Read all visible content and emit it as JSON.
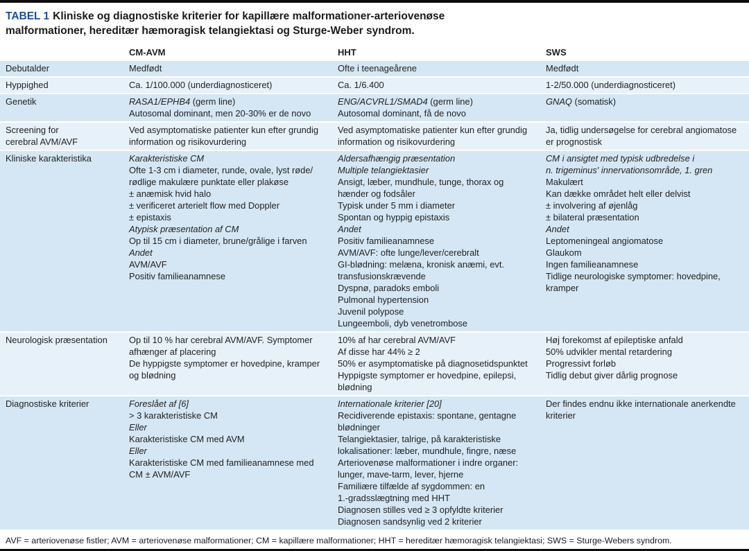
{
  "title": {
    "tag": "TABEL 1",
    "line1": "Kliniske og diagnostiske kriterier for kapillære malformationer-arteriovenøse",
    "line2": "malformationer, hereditær hæmoragisk telangiektasi og Sturge-Weber syndrom."
  },
  "colors": {
    "title_tag_blue": "#1e4f96",
    "row_dark_blue": "#d5e7f4",
    "row_light_blue": "#e7f1fa",
    "rule_black": "#0c0c0c"
  },
  "table": {
    "columns": [
      "CM-AVM",
      "HHT",
      "SWS"
    ],
    "column_keys": [
      "cm-avm",
      "hht",
      "sws"
    ],
    "rows": [
      {
        "label": [
          "Debutalder"
        ],
        "cells": [
          [
            [
              {
                "t": "Medfødt"
              }
            ]
          ],
          [
            [
              {
                "t": "Ofte i teenageårene"
              }
            ]
          ],
          [
            [
              {
                "t": "Medfødt"
              }
            ]
          ]
        ]
      },
      {
        "label": [
          "Hyppighed"
        ],
        "cells": [
          [
            [
              {
                "t": "Ca. 1/100.000 (underdiagnosticeret)"
              }
            ]
          ],
          [
            [
              {
                "t": "Ca. 1/6.400"
              }
            ]
          ],
          [
            [
              {
                "t": "1-2/50.000 (underdiagnosticeret)"
              }
            ]
          ]
        ]
      },
      {
        "label": [
          "Genetik"
        ],
        "cells": [
          [
            [
              {
                "t": "RASA1/EPHB4",
                "i": true
              },
              {
                "t": " (germ line)"
              }
            ],
            [
              {
                "t": "Autosomal dominant, men 20-30% er de novo"
              }
            ]
          ],
          [
            [
              {
                "t": "ENG/ACVRL1/SMAD4",
                "i": true
              },
              {
                "t": " (germ line)"
              }
            ],
            [
              {
                "t": "Autosomal dominant, få de novo"
              }
            ]
          ],
          [
            [
              {
                "t": "GNAQ",
                "i": true
              },
              {
                "t": " (somatisk)"
              }
            ]
          ]
        ]
      },
      {
        "label": [
          "Screening for",
          "cerebral AVM/AVF"
        ],
        "cells": [
          [
            [
              {
                "t": "Ved asymptomatiske patienter kun efter grundig"
              }
            ],
            [
              {
                "t": "information og risikovurdering"
              }
            ]
          ],
          [
            [
              {
                "t": "Ved asymptomatiske patienter kun efter grundig"
              }
            ],
            [
              {
                "t": "information og risikovurdering"
              }
            ]
          ],
          [
            [
              {
                "t": "Ja, tidlig undersøgelse for cerebral angiomatose"
              }
            ],
            [
              {
                "t": "er prognostisk"
              }
            ]
          ]
        ]
      },
      {
        "label": [
          "Kliniske karakteristika"
        ],
        "cells": [
          [
            [
              {
                "t": "Karakteristiske CM",
                "i": true
              }
            ],
            [
              {
                "t": "Ofte 1-3 cm i diameter, runde, ovale, lyst røde/"
              }
            ],
            [
              {
                "t": "rødlige makulære punktate eller plakøse"
              }
            ],
            [
              {
                "t": "± anæmisk hvid halo"
              }
            ],
            [
              {
                "t": "± verificeret arterielt flow med Doppler"
              }
            ],
            [
              {
                "t": "± epistaxis"
              }
            ],
            [
              {
                "t": "Atypisk præsentation af CM",
                "i": true
              }
            ],
            [
              {
                "t": "Op til 15 cm i diameter, brune/grålige i farven"
              }
            ],
            [
              {
                "t": "Andet",
                "i": true
              }
            ],
            [
              {
                "t": "AVM/AVF"
              }
            ],
            [
              {
                "t": "Positiv familieanamnese"
              }
            ]
          ],
          [
            [
              {
                "t": "Aldersafhængig præsentation",
                "i": true
              }
            ],
            [
              {
                "t": "Multiple telangiektasier",
                "i": true
              }
            ],
            [
              {
                "t": "Ansigt, læber, mundhule, tunge, thorax og"
              }
            ],
            [
              {
                "t": "hænder og fodsåler"
              }
            ],
            [
              {
                "t": "Typisk under 5 mm i diameter"
              }
            ],
            [
              {
                "t": "Spontan og hyppig epistaxis"
              }
            ],
            [
              {
                "t": "Andet",
                "i": true
              }
            ],
            [
              {
                "t": "Positiv familieanamnese"
              }
            ],
            [
              {
                "t": "AVM/AVF: ofte lunge/lever/cerebralt"
              }
            ],
            [
              {
                "t": "GI-blødning: melæna, kronisk anæmi, evt."
              }
            ],
            [
              {
                "t": "transfusionskrævende"
              }
            ],
            [
              {
                "t": "Dyspnø, paradoks emboli"
              }
            ],
            [
              {
                "t": "Pulmonal hypertension"
              }
            ],
            [
              {
                "t": "Juvenil polypose"
              }
            ],
            [
              {
                "t": "Lungeemboli, dyb venetrombose"
              }
            ]
          ],
          [
            [
              {
                "t": "CM i ansigtet med typisk udbredelse i",
                "i": true
              }
            ],
            [
              {
                "t": "n. trigeminus' innervationsområde, 1. gren",
                "i": true
              }
            ],
            [
              {
                "t": "Makulært"
              }
            ],
            [
              {
                "t": "Kan dække området helt eller delvist"
              }
            ],
            [
              {
                "t": "± involvering af øjenlåg"
              }
            ],
            [
              {
                "t": "± bilateral præsentation"
              }
            ],
            [
              {
                "t": "Andet",
                "i": true
              }
            ],
            [
              {
                "t": "Leptomeningeal angiomatose"
              }
            ],
            [
              {
                "t": "Glaukom"
              }
            ],
            [
              {
                "t": "Ingen familieanamnese"
              }
            ],
            [
              {
                "t": "Tidlige neurologiske symptomer: hovedpine,"
              }
            ],
            [
              {
                "t": "kramper"
              }
            ]
          ]
        ]
      },
      {
        "label": [
          "Neurologisk præsentation"
        ],
        "cells": [
          [
            [
              {
                "t": "Op til 10 % har cerebral AVM/AVF. Symptomer"
              }
            ],
            [
              {
                "t": "afhænger af placering"
              }
            ],
            [
              {
                "t": "De hyppigste symptomer er hovedpine, kramper"
              }
            ],
            [
              {
                "t": "og blødning"
              }
            ]
          ],
          [
            [
              {
                "t": "10% af har cerebral AVM/AVF"
              }
            ],
            [
              {
                "t": "Af disse har 44% ≥ 2"
              }
            ],
            [
              {
                "t": "50% er asymptomatiske på diagnosetidspunktet"
              }
            ],
            [
              {
                "t": "Hyppigste symptomer er hovedpine, epilepsi,"
              }
            ],
            [
              {
                "t": "blødning"
              }
            ]
          ],
          [
            [
              {
                "t": "Høj forekomst af epileptiske anfald"
              }
            ],
            [
              {
                "t": "50% udvikler mental retardering"
              }
            ],
            [
              {
                "t": "Progressivt forløb"
              }
            ],
            [
              {
                "t": "Tidlig debut giver dårlig prognose"
              }
            ]
          ]
        ]
      },
      {
        "label": [
          "Diagnostiske kriterier"
        ],
        "cells": [
          [
            [
              {
                "t": "Foreslået af [6]",
                "i": true
              }
            ],
            [
              {
                "t": "> 3 karakteristiske CM"
              }
            ],
            [
              {
                "t": "Eller",
                "i": true
              }
            ],
            [
              {
                "t": "Karakteristiske CM med AVM"
              }
            ],
            [
              {
                "t": "Eller",
                "i": true
              }
            ],
            [
              {
                "t": "Karakteristiske CM med familieanamnese med"
              }
            ],
            [
              {
                "t": "CM ± AVM/AVF"
              }
            ]
          ],
          [
            [
              {
                "t": "Internationale kriterier [20]",
                "i": true
              }
            ],
            [
              {
                "t": "Recidiverende epistaxis: spontane, gentagne"
              }
            ],
            [
              {
                "t": "blødninger"
              }
            ],
            [
              {
                "t": "Telangiektasier, talrige, på karakteristiske"
              }
            ],
            [
              {
                "t": "lokalisationer: læber, mundhule, fingre, næse"
              }
            ],
            [
              {
                "t": "Arteriovenøse malformationer i indre organer:"
              }
            ],
            [
              {
                "t": "lunger, mave-tarm, lever, hjerne"
              }
            ],
            [
              {
                "t": "Familiære tilfælde af sygdommen: en"
              }
            ],
            [
              {
                "t": "1.-gradsslægtning med HHT"
              }
            ],
            [
              {
                "t": "Diagnosen stilles ved ≥ 3 opfyldte kriterier"
              }
            ],
            [
              {
                "t": "Diagnosen sandsynlig ved 2 kriterier"
              }
            ]
          ],
          [
            [
              {
                "t": "Der findes endnu ikke internationale anerkendte"
              }
            ],
            [
              {
                "t": "kriterier"
              }
            ]
          ]
        ]
      }
    ]
  },
  "footnote": "AVF = arteriovenøse fistler; AVM = arteriovenøse malformationer; CM = kapillære malformationer; HHT = hereditær hæmoragisk telangiektasi; SWS = Sturge-Webers syndrom."
}
